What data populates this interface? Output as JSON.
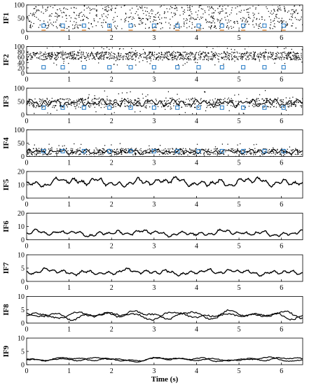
{
  "chart_data": {
    "type": "line",
    "xlabel": "Time (s)",
    "xlim": [
      0,
      6.5
    ],
    "xticks": [
      "0",
      "1",
      "2",
      "3",
      "4",
      "5",
      "6"
    ],
    "marker_color": "#1f77c4",
    "marker_times": [
      0.4,
      0.85,
      1.35,
      1.95,
      2.45,
      3.0,
      3.55,
      4.05,
      4.6,
      5.1,
      5.6,
      6.05
    ],
    "panels": [
      {
        "name": "IF1",
        "label": "IF1",
        "ylim": [
          0,
          100
        ],
        "yticks": [
          "0",
          "50",
          "100"
        ],
        "style": "scatter-sparse",
        "base": 55,
        "spread": 45,
        "markers": true,
        "marker_y": 22,
        "accent_y": 5
      },
      {
        "name": "IF2",
        "label": "IF2",
        "ylim": [
          0,
          100
        ],
        "yticks": [
          "0",
          "20",
          "40",
          "60",
          "80",
          "100"
        ],
        "style": "scatter-band",
        "base": 65,
        "spread": 15,
        "markers": true,
        "marker_y": 22
      },
      {
        "name": "IF3",
        "label": "IF3",
        "ylim": [
          0,
          100
        ],
        "yticks": [
          "0",
          "50",
          "100"
        ],
        "style": "scatter-band-line",
        "base": 45,
        "spread": 18,
        "markers": true,
        "marker_y": 27
      },
      {
        "name": "IF4",
        "label": "IF4",
        "ylim": [
          0,
          100
        ],
        "yticks": [
          "0",
          "50",
          "100"
        ],
        "style": "scatter-band-line",
        "base": 18,
        "spread": 12,
        "markers": true,
        "marker_y": 20
      },
      {
        "name": "IF5",
        "label": "IF5",
        "ylim": [
          0,
          20
        ],
        "yticks": [
          "0",
          "10",
          "20"
        ],
        "style": "line",
        "base": 12,
        "spread": 3
      },
      {
        "name": "IF6",
        "label": "IF6",
        "ylim": [
          0,
          20
        ],
        "yticks": [
          "0",
          "10",
          "20"
        ],
        "style": "line",
        "base": 5,
        "spread": 2
      },
      {
        "name": "IF7",
        "label": "IF7",
        "ylim": [
          0,
          10
        ],
        "yticks": [
          "0",
          "5",
          "10"
        ],
        "style": "line",
        "base": 3.5,
        "spread": 1
      },
      {
        "name": "IF8",
        "label": "IF8",
        "ylim": [
          0,
          10
        ],
        "yticks": [
          "0",
          "5",
          "10"
        ],
        "style": "double-line",
        "base": 3,
        "spread": 1.2
      },
      {
        "name": "IF9",
        "label": "IF9",
        "ylim": [
          0,
          10
        ],
        "yticks": [
          "0",
          "5",
          "10"
        ],
        "style": "double-line",
        "base": 2,
        "spread": 0.6
      }
    ]
  }
}
